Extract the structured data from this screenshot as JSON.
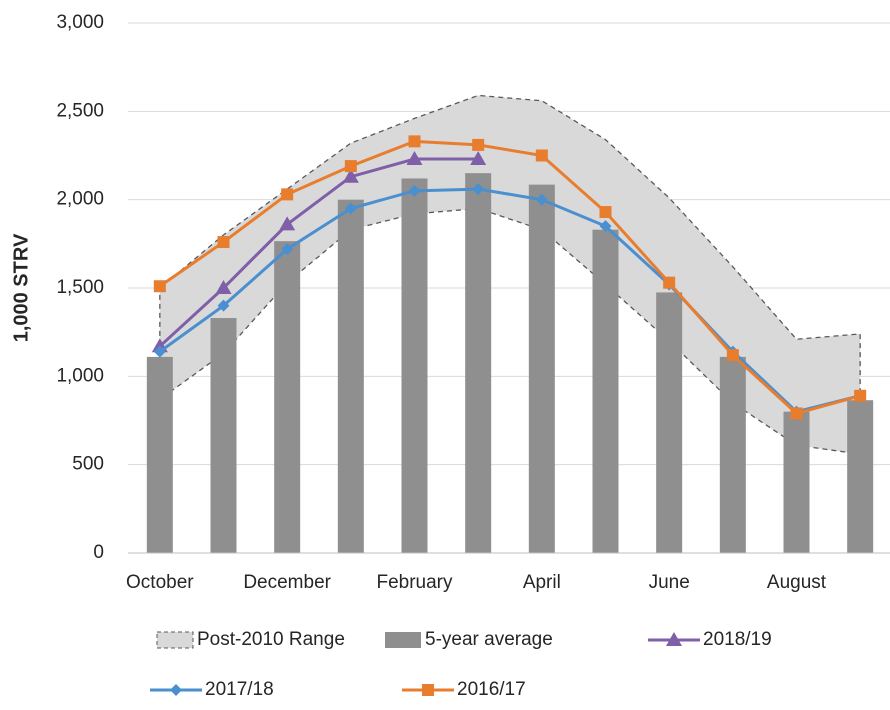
{
  "chart_data": {
    "type": "combo",
    "y_label": "1,000 STRV",
    "categories": [
      "October",
      null,
      "December",
      null,
      "February",
      null,
      "April",
      null,
      "June",
      null,
      "August",
      null
    ],
    "ylim": [
      0,
      3000
    ],
    "yticks": [
      0,
      500,
      {
        "value": 1000,
        "label": "1,000"
      },
      {
        "value": 1500,
        "label": "1,500"
      },
      {
        "value": 2000,
        "label": "2,000"
      },
      {
        "value": 2500,
        "label": "2,500"
      },
      {
        "value": 3000,
        "label": "3,000"
      }
    ],
    "grid": true,
    "series": [
      {
        "name": "Post-2010 Range",
        "kind": "range",
        "color": "#d9d9d9",
        "edge_color": "#595959",
        "upper": [
          1500,
          1800,
          2060,
          2320,
          2460,
          2590,
          2560,
          2340,
          2010,
          1620,
          1210,
          1240
        ],
        "lower": [
          870,
          1130,
          1530,
          1830,
          1920,
          1950,
          1830,
          1520,
          1200,
          850,
          610,
          560
        ]
      },
      {
        "name": "5-year average",
        "kind": "bar",
        "color": "#8f8f8f",
        "values": [
          1110,
          1330,
          1765,
          2000,
          2120,
          2150,
          2085,
          1830,
          1475,
          1110,
          800,
          865
        ]
      },
      {
        "name": "2018/19",
        "kind": "line",
        "marker": "triangle",
        "color": "#7f5fa8",
        "values": [
          1170,
          1500,
          1860,
          2130,
          2230,
          2230,
          null,
          null,
          null,
          null,
          null,
          null
        ]
      },
      {
        "name": "2017/18",
        "kind": "line",
        "marker": "diamond",
        "color": "#4a8fcf",
        "values": [
          1140,
          1400,
          1720,
          1950,
          2050,
          2060,
          2000,
          1850,
          1520,
          1140,
          800,
          890
        ]
      },
      {
        "name": "2016/17",
        "kind": "line",
        "marker": "square",
        "color": "#e87d2e",
        "values": [
          1510,
          1760,
          2030,
          2190,
          2330,
          2310,
          2250,
          1930,
          1530,
          1120,
          790,
          890
        ]
      }
    ]
  }
}
